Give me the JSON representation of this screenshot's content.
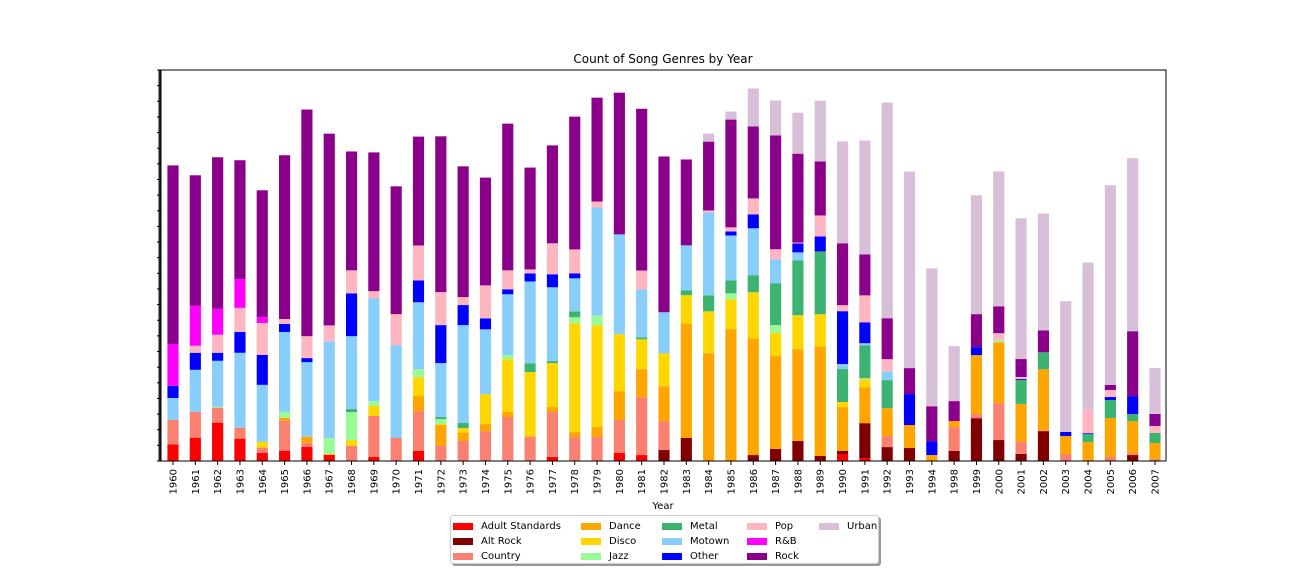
{
  "chart_data": {
    "type": "bar",
    "stacked": true,
    "title": "Count of Song Genres by Year",
    "xlabel": "Year",
    "ylabel": "",
    "ylim": [
      0,
      25
    ],
    "y_tick_step": 1,
    "y_tick_labels_visible": false,
    "grid": false,
    "legend_position": "bottom-center",
    "categories": [
      "1960",
      "1961",
      "1962",
      "1963",
      "1964",
      "1965",
      "1966",
      "1967",
      "1968",
      "1969",
      "1970",
      "1971",
      "1972",
      "1973",
      "1974",
      "1975",
      "1976",
      "1977",
      "1978",
      "1979",
      "1980",
      "1981",
      "1982",
      "1983",
      "1984",
      "1985",
      "1986",
      "1987",
      "1988",
      "1989",
      "1990",
      "1991",
      "1992",
      "1993",
      "1994",
      "1998",
      "1999",
      "2000",
      "2001",
      "2002",
      "2003",
      "2004",
      "2005",
      "2006",
      "2007"
    ],
    "series": [
      {
        "name": "Adult Standards",
        "color": "#ff0000",
        "values": [
          1.06,
          1.49,
          2.45,
          1.43,
          0.53,
          0.66,
          0.91,
          0.4,
          0,
          0.26,
          0,
          0.64,
          0,
          0,
          0,
          0,
          0,
          0.26,
          0,
          0,
          0.51,
          0.38,
          0,
          0,
          0,
          0,
          0,
          0,
          0,
          0,
          0.45,
          0.19,
          0,
          0,
          0,
          0,
          0,
          0,
          0,
          0,
          0,
          0,
          0,
          0,
          0
        ]
      },
      {
        "name": "Alt Rock",
        "color": "#800000",
        "values": [
          0,
          0,
          0,
          0,
          0,
          0,
          0,
          0,
          0,
          0,
          0,
          0,
          0,
          0,
          0,
          0,
          0,
          0,
          0,
          0,
          0,
          0,
          0.7,
          1.47,
          0,
          0,
          0.38,
          0.77,
          1.28,
          0.32,
          0.19,
          2.23,
          0.89,
          0.83,
          0,
          0.64,
          2.74,
          1.34,
          0.45,
          1.91,
          0,
          0,
          0,
          0.38,
          0
        ]
      },
      {
        "name": "Country",
        "color": "#fa8072",
        "values": [
          1.57,
          1.66,
          0.96,
          0.7,
          0.32,
          1.91,
          0.26,
          0,
          0.96,
          2.62,
          1.47,
          2.55,
          0.96,
          1.28,
          1.91,
          2.81,
          1.53,
          2.87,
          1.53,
          1.53,
          2.11,
          3.7,
          1.85,
          0,
          0,
          0,
          0,
          0,
          0,
          0,
          0,
          0,
          0.7,
          0,
          0,
          1.53,
          0.26,
          2.36,
          0.77,
          0.06,
          0.45,
          0,
          0.26,
          0.13,
          0.13
        ]
      },
      {
        "name": "Dance",
        "color": "#ffa500",
        "values": [
          0,
          0,
          0,
          0,
          0,
          0.19,
          0.38,
          0,
          0,
          0,
          0,
          0.96,
          1.34,
          0.51,
          0.45,
          0.32,
          0.06,
          0.32,
          0.32,
          0.64,
          1.85,
          1.79,
          2.23,
          7.34,
          6.89,
          8.43,
          7.47,
          5.94,
          5.87,
          7.02,
          2.81,
          2.3,
          1.79,
          1.47,
          0.38,
          0.38,
          3.77,
          3.89,
          2.43,
          3.89,
          1.15,
          1.21,
          2.49,
          2.04,
          1.02
        ]
      },
      {
        "name": "Disco",
        "color": "#ffd700",
        "values": [
          0,
          0,
          0,
          0,
          0.38,
          0,
          0,
          0.06,
          0.38,
          0.64,
          0,
          1.21,
          0.06,
          0.32,
          1.91,
          3.38,
          4.09,
          2.81,
          6.96,
          6.51,
          3.64,
          1.91,
          2.11,
          1.79,
          2.68,
          1.91,
          2.94,
          1.47,
          2.17,
          2.04,
          0.32,
          0.51,
          0,
          0,
          0,
          0,
          0,
          0,
          0,
          0,
          0,
          0,
          0,
          0,
          0
        ]
      },
      {
        "name": "Jazz",
        "color": "#98fb98",
        "values": [
          0,
          0,
          0.06,
          0,
          0,
          0.38,
          0,
          1.0,
          1.79,
          0.32,
          0,
          0.51,
          0.32,
          0,
          0,
          0.26,
          0,
          0,
          0.38,
          0.64,
          0,
          0,
          0,
          0,
          0,
          0.38,
          0,
          0.51,
          0,
          0,
          0,
          0.06,
          0,
          0,
          0,
          0,
          0,
          0.13,
          0,
          0,
          0,
          0,
          0,
          0,
          0
        ]
      },
      {
        "name": "Metal",
        "color": "#3cb371",
        "values": [
          0,
          0,
          0,
          0,
          0,
          0,
          0,
          0,
          0.19,
          0,
          0,
          0,
          0.13,
          0.32,
          0,
          0,
          0.57,
          0.13,
          0.38,
          0,
          0,
          0.13,
          0,
          0.32,
          1.02,
          0.83,
          1.09,
          2.68,
          3.51,
          4.02,
          2.11,
          2.11,
          1.79,
          0,
          0,
          0,
          0,
          0,
          1.53,
          1.09,
          0,
          0.51,
          1.15,
          0.45,
          0.64
        ]
      },
      {
        "name": "Motown",
        "color": "#87cefa",
        "values": [
          1.4,
          2.68,
          2.94,
          4.79,
          3.64,
          5.11,
          4.77,
          6.19,
          4.66,
          6.57,
          5.94,
          4.28,
          3.45,
          6.26,
          4.15,
          3.89,
          5.23,
          4.72,
          2.11,
          6.89,
          6.38,
          3.06,
          2.62,
          2.87,
          5.3,
          2.87,
          3.0,
          1.53,
          0.51,
          0,
          0.32,
          0.13,
          0.57,
          0,
          0,
          0,
          0,
          0,
          0,
          0,
          0,
          0,
          0,
          0,
          0
        ]
      },
      {
        "name": "Other",
        "color": "#0000ff",
        "values": [
          0.77,
          1.09,
          0.51,
          1.34,
          1.91,
          0.51,
          0.26,
          0,
          2.74,
          0,
          0,
          1.4,
          2.43,
          1.28,
          0.7,
          0.32,
          0.51,
          0.83,
          0.32,
          0,
          0,
          0,
          0,
          0,
          0,
          0.26,
          0.89,
          0,
          0.57,
          0.96,
          3.38,
          1.34,
          0,
          1.98,
          0.89,
          0,
          0.51,
          0,
          0.06,
          0,
          0.26,
          0.06,
          0.19,
          1.15,
          0
        ]
      },
      {
        "name": "Pop",
        "color": "#ffb6c1",
        "values": [
          0,
          0.45,
          1.15,
          1.53,
          2.04,
          0.32,
          1.4,
          1.02,
          1.47,
          0.45,
          1.98,
          2.23,
          2.11,
          0.51,
          2.11,
          1.21,
          0.26,
          1.98,
          1.53,
          0.38,
          0,
          1.21,
          0,
          0,
          0.13,
          0.26,
          1.02,
          0.64,
          0.06,
          1.34,
          0.38,
          1.72,
          0.77,
          0,
          0,
          0,
          0,
          0.45,
          0.13,
          0,
          0,
          1.53,
          0.45,
          0,
          0.45
        ]
      },
      {
        "name": "R&B",
        "color": "#ff00ff",
        "values": [
          2.68,
          2.55,
          1.66,
          1.85,
          0.38,
          0,
          0,
          0,
          0,
          0,
          0,
          0,
          0,
          0,
          0,
          0,
          0,
          0,
          0,
          0,
          0,
          0,
          0,
          0,
          0,
          0,
          0,
          0,
          0,
          0,
          0,
          0,
          0,
          0,
          0,
          0,
          0,
          0,
          0,
          0,
          0,
          0,
          0,
          0,
          0
        ]
      },
      {
        "name": "Rock",
        "color": "#8b008b",
        "values": [
          11.42,
          8.35,
          9.69,
          7.59,
          8.11,
          10.47,
          14.49,
          12.26,
          7.6,
          8.87,
          8.17,
          6.96,
          9.96,
          8.36,
          6.89,
          9.38,
          6.51,
          6.26,
          8.49,
          6.64,
          9.06,
          10.34,
          9.96,
          5.49,
          4.4,
          6.89,
          4.6,
          7.28,
          5.68,
          3.45,
          3.96,
          2.62,
          2.62,
          1.66,
          2.23,
          1.28,
          2.11,
          1.72,
          1.15,
          1.4,
          0,
          0,
          0.32,
          4.15,
          0.77
        ]
      },
      {
        "name": "Urban",
        "color": "#d8bfd8",
        "values": [
          0,
          0,
          0,
          0,
          0,
          0,
          0,
          0,
          0,
          0,
          0,
          0,
          0,
          0,
          0,
          0,
          0,
          0,
          0,
          0,
          0,
          0,
          0,
          0,
          0.51,
          0.51,
          2.43,
          2.23,
          2.62,
          3.89,
          6.51,
          7.28,
          13.79,
          12.57,
          8.81,
          3.51,
          7.6,
          8.62,
          9.0,
          7.47,
          8.36,
          9.38,
          12.77,
          11.06,
          2.94
        ]
      }
    ]
  }
}
